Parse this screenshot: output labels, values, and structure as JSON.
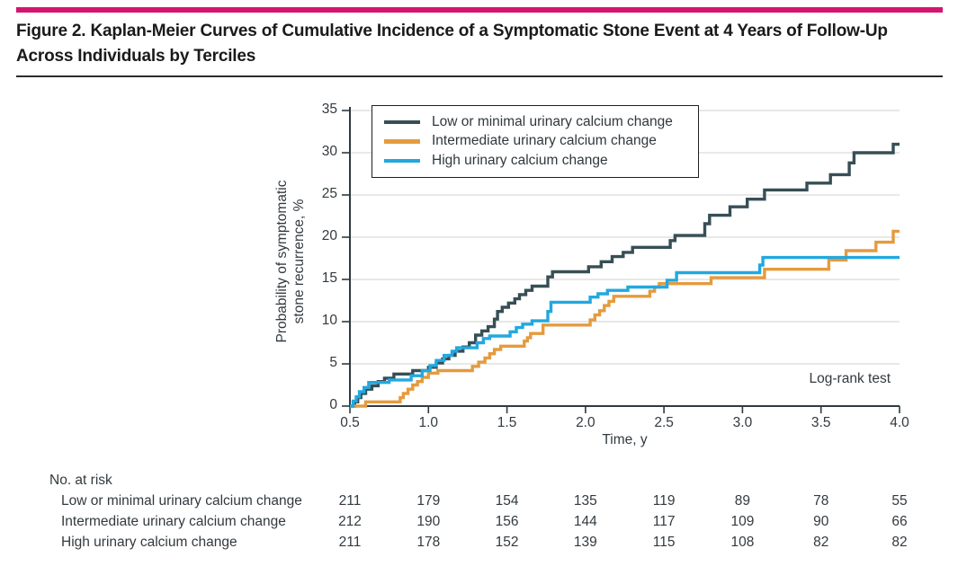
{
  "header": {
    "title_line1": "Figure 2. Kaplan-Meier Curves of Cumulative Incidence of a Symptomatic Stone Event at 4 Years of Follow-Up",
    "title_line2": "Across Individuals by Terciles",
    "accent_color": "#d4156e"
  },
  "chart_data": {
    "type": "line",
    "subtype": "kaplan-meier-step",
    "xlabel": "Time, y",
    "ylabel_line1": "Probability of symptomatic",
    "ylabel_line2": "stone recurrence, %",
    "xlim": [
      0.5,
      4.0
    ],
    "ylim": [
      0,
      35
    ],
    "xticks": [
      "0.5",
      "1.0",
      "1.5",
      "2.0",
      "2.5",
      "3.0",
      "3.5",
      "4.0"
    ],
    "yticks": [
      0,
      5,
      10,
      15,
      20,
      25,
      30,
      35
    ],
    "grid": "horizontal",
    "legend_position": "top-left-inside",
    "annotations": [
      "Log-rank test"
    ],
    "series": [
      {
        "name": "Low or minimal urinary calcium change",
        "color": "#374e55",
        "points": [
          [
            0.5,
            0
          ],
          [
            0.53,
            0.5
          ],
          [
            0.55,
            1.0
          ],
          [
            0.57,
            1.5
          ],
          [
            0.6,
            2.0
          ],
          [
            0.64,
            2.4
          ],
          [
            0.68,
            2.9
          ],
          [
            0.72,
            3.3
          ],
          [
            0.78,
            3.8
          ],
          [
            0.9,
            4.2
          ],
          [
            1.0,
            4.6
          ],
          [
            1.05,
            5.1
          ],
          [
            1.09,
            5.6
          ],
          [
            1.13,
            6.0
          ],
          [
            1.17,
            6.5
          ],
          [
            1.22,
            7.0
          ],
          [
            1.26,
            7.5
          ],
          [
            1.3,
            8.4
          ],
          [
            1.34,
            8.9
          ],
          [
            1.38,
            9.4
          ],
          [
            1.42,
            10.3
          ],
          [
            1.44,
            11.2
          ],
          [
            1.47,
            11.7
          ],
          [
            1.51,
            12.2
          ],
          [
            1.55,
            12.7
          ],
          [
            1.58,
            13.2
          ],
          [
            1.62,
            13.7
          ],
          [
            1.66,
            14.2
          ],
          [
            1.76,
            15.3
          ],
          [
            1.79,
            15.9
          ],
          [
            2.02,
            16.5
          ],
          [
            2.1,
            17.1
          ],
          [
            2.17,
            17.7
          ],
          [
            2.24,
            18.2
          ],
          [
            2.3,
            18.8
          ],
          [
            2.54,
            19.6
          ],
          [
            2.57,
            20.2
          ],
          [
            2.76,
            21.6
          ],
          [
            2.79,
            22.6
          ],
          [
            2.92,
            23.6
          ],
          [
            3.03,
            24.5
          ],
          [
            3.14,
            25.6
          ],
          [
            3.41,
            26.4
          ],
          [
            3.56,
            27.4
          ],
          [
            3.68,
            28.8
          ],
          [
            3.71,
            30.0
          ],
          [
            3.96,
            31.0
          ]
        ]
      },
      {
        "name": "Intermediate urinary calcium change",
        "color": "#e49b3f",
        "points": [
          [
            0.5,
            0
          ],
          [
            0.6,
            0.5
          ],
          [
            0.82,
            1.0
          ],
          [
            0.84,
            1.5
          ],
          [
            0.87,
            2.0
          ],
          [
            0.9,
            2.5
          ],
          [
            0.93,
            2.9
          ],
          [
            0.96,
            3.4
          ],
          [
            1.0,
            3.9
          ],
          [
            1.06,
            4.2
          ],
          [
            1.28,
            4.7
          ],
          [
            1.32,
            5.2
          ],
          [
            1.36,
            5.7
          ],
          [
            1.39,
            6.2
          ],
          [
            1.42,
            6.7
          ],
          [
            1.46,
            7.1
          ],
          [
            1.61,
            7.7
          ],
          [
            1.63,
            8.1
          ],
          [
            1.65,
            8.6
          ],
          [
            1.73,
            9.6
          ],
          [
            2.03,
            10.2
          ],
          [
            2.06,
            10.8
          ],
          [
            2.09,
            11.3
          ],
          [
            2.12,
            11.9
          ],
          [
            2.15,
            12.4
          ],
          [
            2.18,
            13.0
          ],
          [
            2.41,
            13.6
          ],
          [
            2.44,
            14.1
          ],
          [
            2.47,
            14.5
          ],
          [
            2.8,
            15.2
          ],
          [
            3.14,
            16.2
          ],
          [
            3.55,
            17.3
          ],
          [
            3.66,
            18.4
          ],
          [
            3.85,
            19.4
          ],
          [
            3.96,
            20.7
          ]
        ]
      },
      {
        "name": "High urinary calcium change",
        "color": "#22a8df",
        "points": [
          [
            0.5,
            0
          ],
          [
            0.52,
            0.6
          ],
          [
            0.54,
            1.1
          ],
          [
            0.56,
            1.7
          ],
          [
            0.59,
            2.2
          ],
          [
            0.62,
            2.8
          ],
          [
            0.75,
            3.1
          ],
          [
            0.89,
            3.6
          ],
          [
            0.96,
            4.2
          ],
          [
            1.01,
            4.8
          ],
          [
            1.05,
            5.4
          ],
          [
            1.1,
            6.0
          ],
          [
            1.15,
            6.5
          ],
          [
            1.18,
            6.9
          ],
          [
            1.31,
            7.5
          ],
          [
            1.35,
            8.0
          ],
          [
            1.39,
            8.3
          ],
          [
            1.52,
            8.8
          ],
          [
            1.56,
            9.3
          ],
          [
            1.6,
            9.7
          ],
          [
            1.66,
            10.1
          ],
          [
            1.76,
            11.2
          ],
          [
            1.78,
            12.3
          ],
          [
            2.03,
            12.9
          ],
          [
            2.08,
            13.3
          ],
          [
            2.14,
            13.7
          ],
          [
            2.27,
            14.1
          ],
          [
            2.52,
            14.9
          ],
          [
            2.58,
            15.8
          ],
          [
            3.11,
            16.7
          ],
          [
            3.13,
            17.6
          ]
        ]
      }
    ],
    "at_risk": {
      "header": "No. at risk",
      "times": [
        0.5,
        1.0,
        1.5,
        2.0,
        2.5,
        3.0,
        3.5,
        4.0
      ],
      "rows": [
        {
          "label": "Low or minimal urinary calcium change",
          "values": [
            211,
            179,
            154,
            135,
            119,
            89,
            78,
            55
          ]
        },
        {
          "label": "Intermediate urinary calcium change",
          "values": [
            212,
            190,
            156,
            144,
            117,
            109,
            90,
            66
          ]
        },
        {
          "label": "High urinary calcium change",
          "values": [
            211,
            178,
            152,
            139,
            115,
            108,
            82,
            82
          ]
        }
      ]
    }
  }
}
